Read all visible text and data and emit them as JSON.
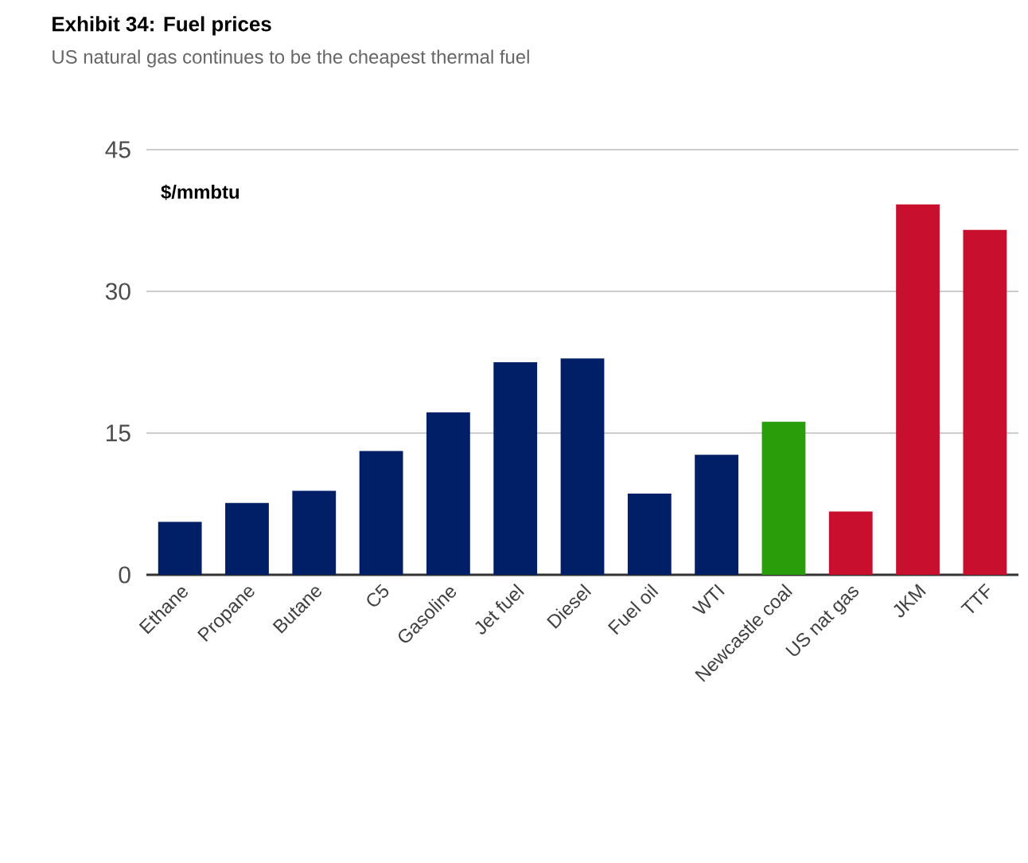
{
  "chart_data": {
    "type": "bar",
    "title": "Exhibit 34: Fuel prices",
    "subtitle": "US natural gas continues to be the cheapest thermal fuel",
    "ylabel": "$/mmbtu",
    "categories": [
      "Ethane",
      "Propane",
      "Butane",
      "C5",
      "Gasoline",
      "Jet fuel",
      "Diesel",
      "Fuel oil",
      "WTI",
      "Newcastle coal",
      "US nat gas",
      "JKM",
      "TTF"
    ],
    "values": [
      5.6,
      7.6,
      8.9,
      13.1,
      17.2,
      22.5,
      22.9,
      8.6,
      12.7,
      16.2,
      6.7,
      39.2,
      36.5
    ],
    "colors": [
      "#001f66",
      "#001f66",
      "#001f66",
      "#001f66",
      "#001f66",
      "#001f66",
      "#001f66",
      "#001f66",
      "#001f66",
      "#2a9d0a",
      "#c8102e",
      "#c8102e",
      "#c8102e"
    ],
    "ylim": [
      0,
      45
    ],
    "yticks": [
      0,
      15,
      30,
      45
    ],
    "grid": "y"
  }
}
